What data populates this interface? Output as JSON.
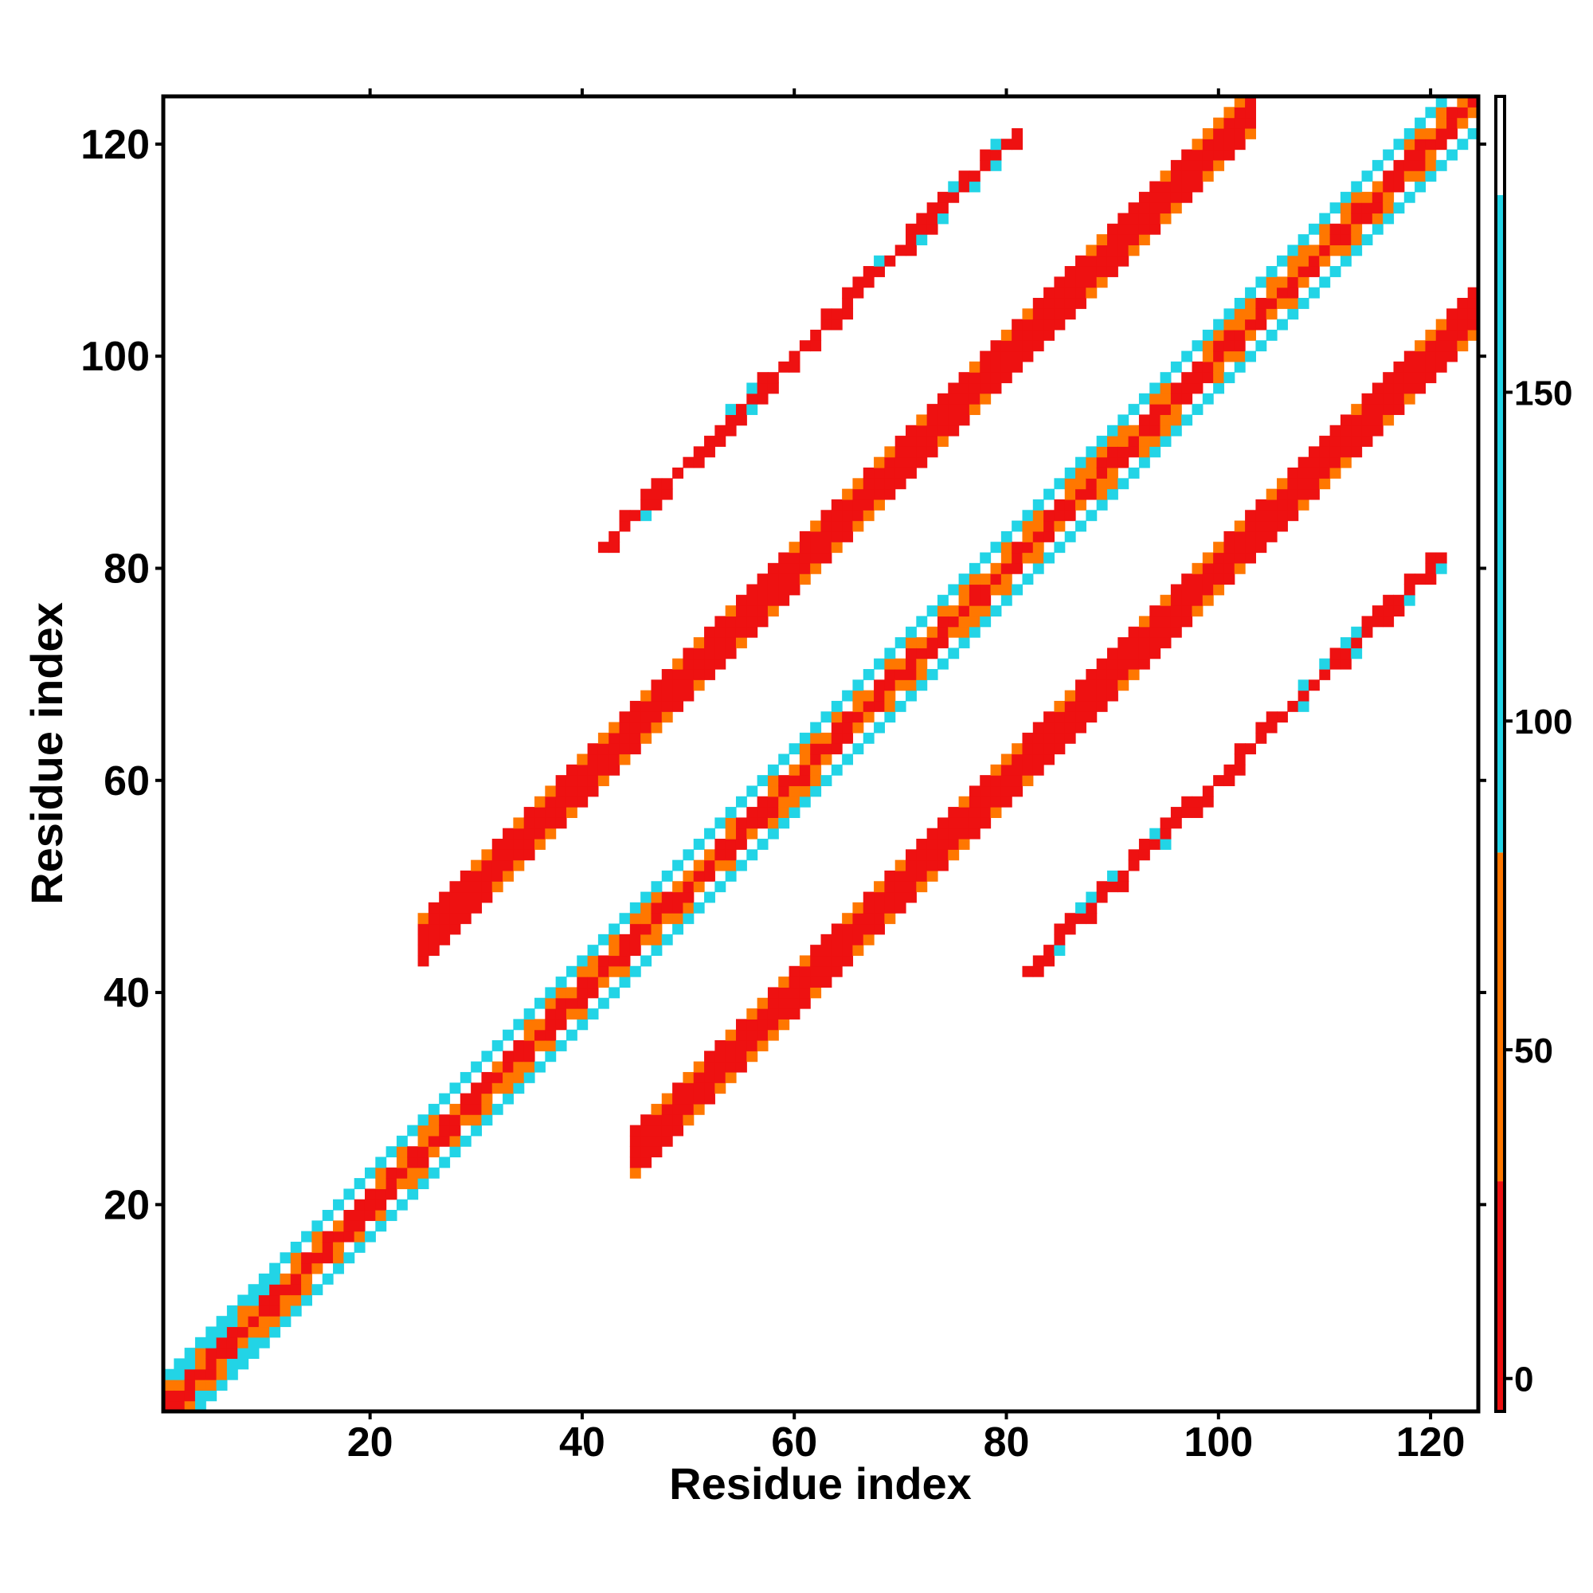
{
  "chart_data": {
    "type": "heatmap",
    "title": "",
    "xlabel": "Residue index",
    "ylabel": "Residue index",
    "xlim": [
      1,
      124
    ],
    "ylim": [
      1,
      124
    ],
    "x_ticks": [
      20,
      40,
      60,
      80,
      100,
      120
    ],
    "y_ticks": [
      20,
      40,
      60,
      80,
      100,
      120
    ],
    "colorbar": {
      "ticks": [
        0,
        50,
        100,
        150
      ],
      "range": [
        -5,
        195
      ],
      "bands": [
        {
          "from": -5,
          "to": 30,
          "color": "#ee1111"
        },
        {
          "from": 30,
          "to": 80,
          "color": "#ff7700"
        },
        {
          "from": 80,
          "to": 180,
          "color": "#22d4e6"
        },
        {
          "from": 180,
          "to": 195,
          "color": "#ffffff"
        }
      ]
    },
    "colors": {
      "red": "#ee1111",
      "orange": "#ff7700",
      "cyan": "#22d4e6",
      "white": "#ffffff"
    },
    "bands": [
      {
        "name": "main-diagonal",
        "offset": 0,
        "start": 1,
        "end": 124,
        "halfwidth": 3.4
      },
      {
        "name": "upper-band",
        "offset": 20,
        "start": 25,
        "end": 103,
        "halfwidth": 2.6
      },
      {
        "name": "lower-band",
        "offset": -20,
        "start": 45,
        "end": 124,
        "halfwidth": 2.6
      },
      {
        "name": "upper-sparse-strand",
        "offset": 40,
        "start": 42,
        "end": 81,
        "halfwidth": 1.0
      },
      {
        "name": "lower-sparse-strand",
        "offset": -40,
        "start": 82,
        "end": 121,
        "halfwidth": 1.0
      }
    ]
  }
}
